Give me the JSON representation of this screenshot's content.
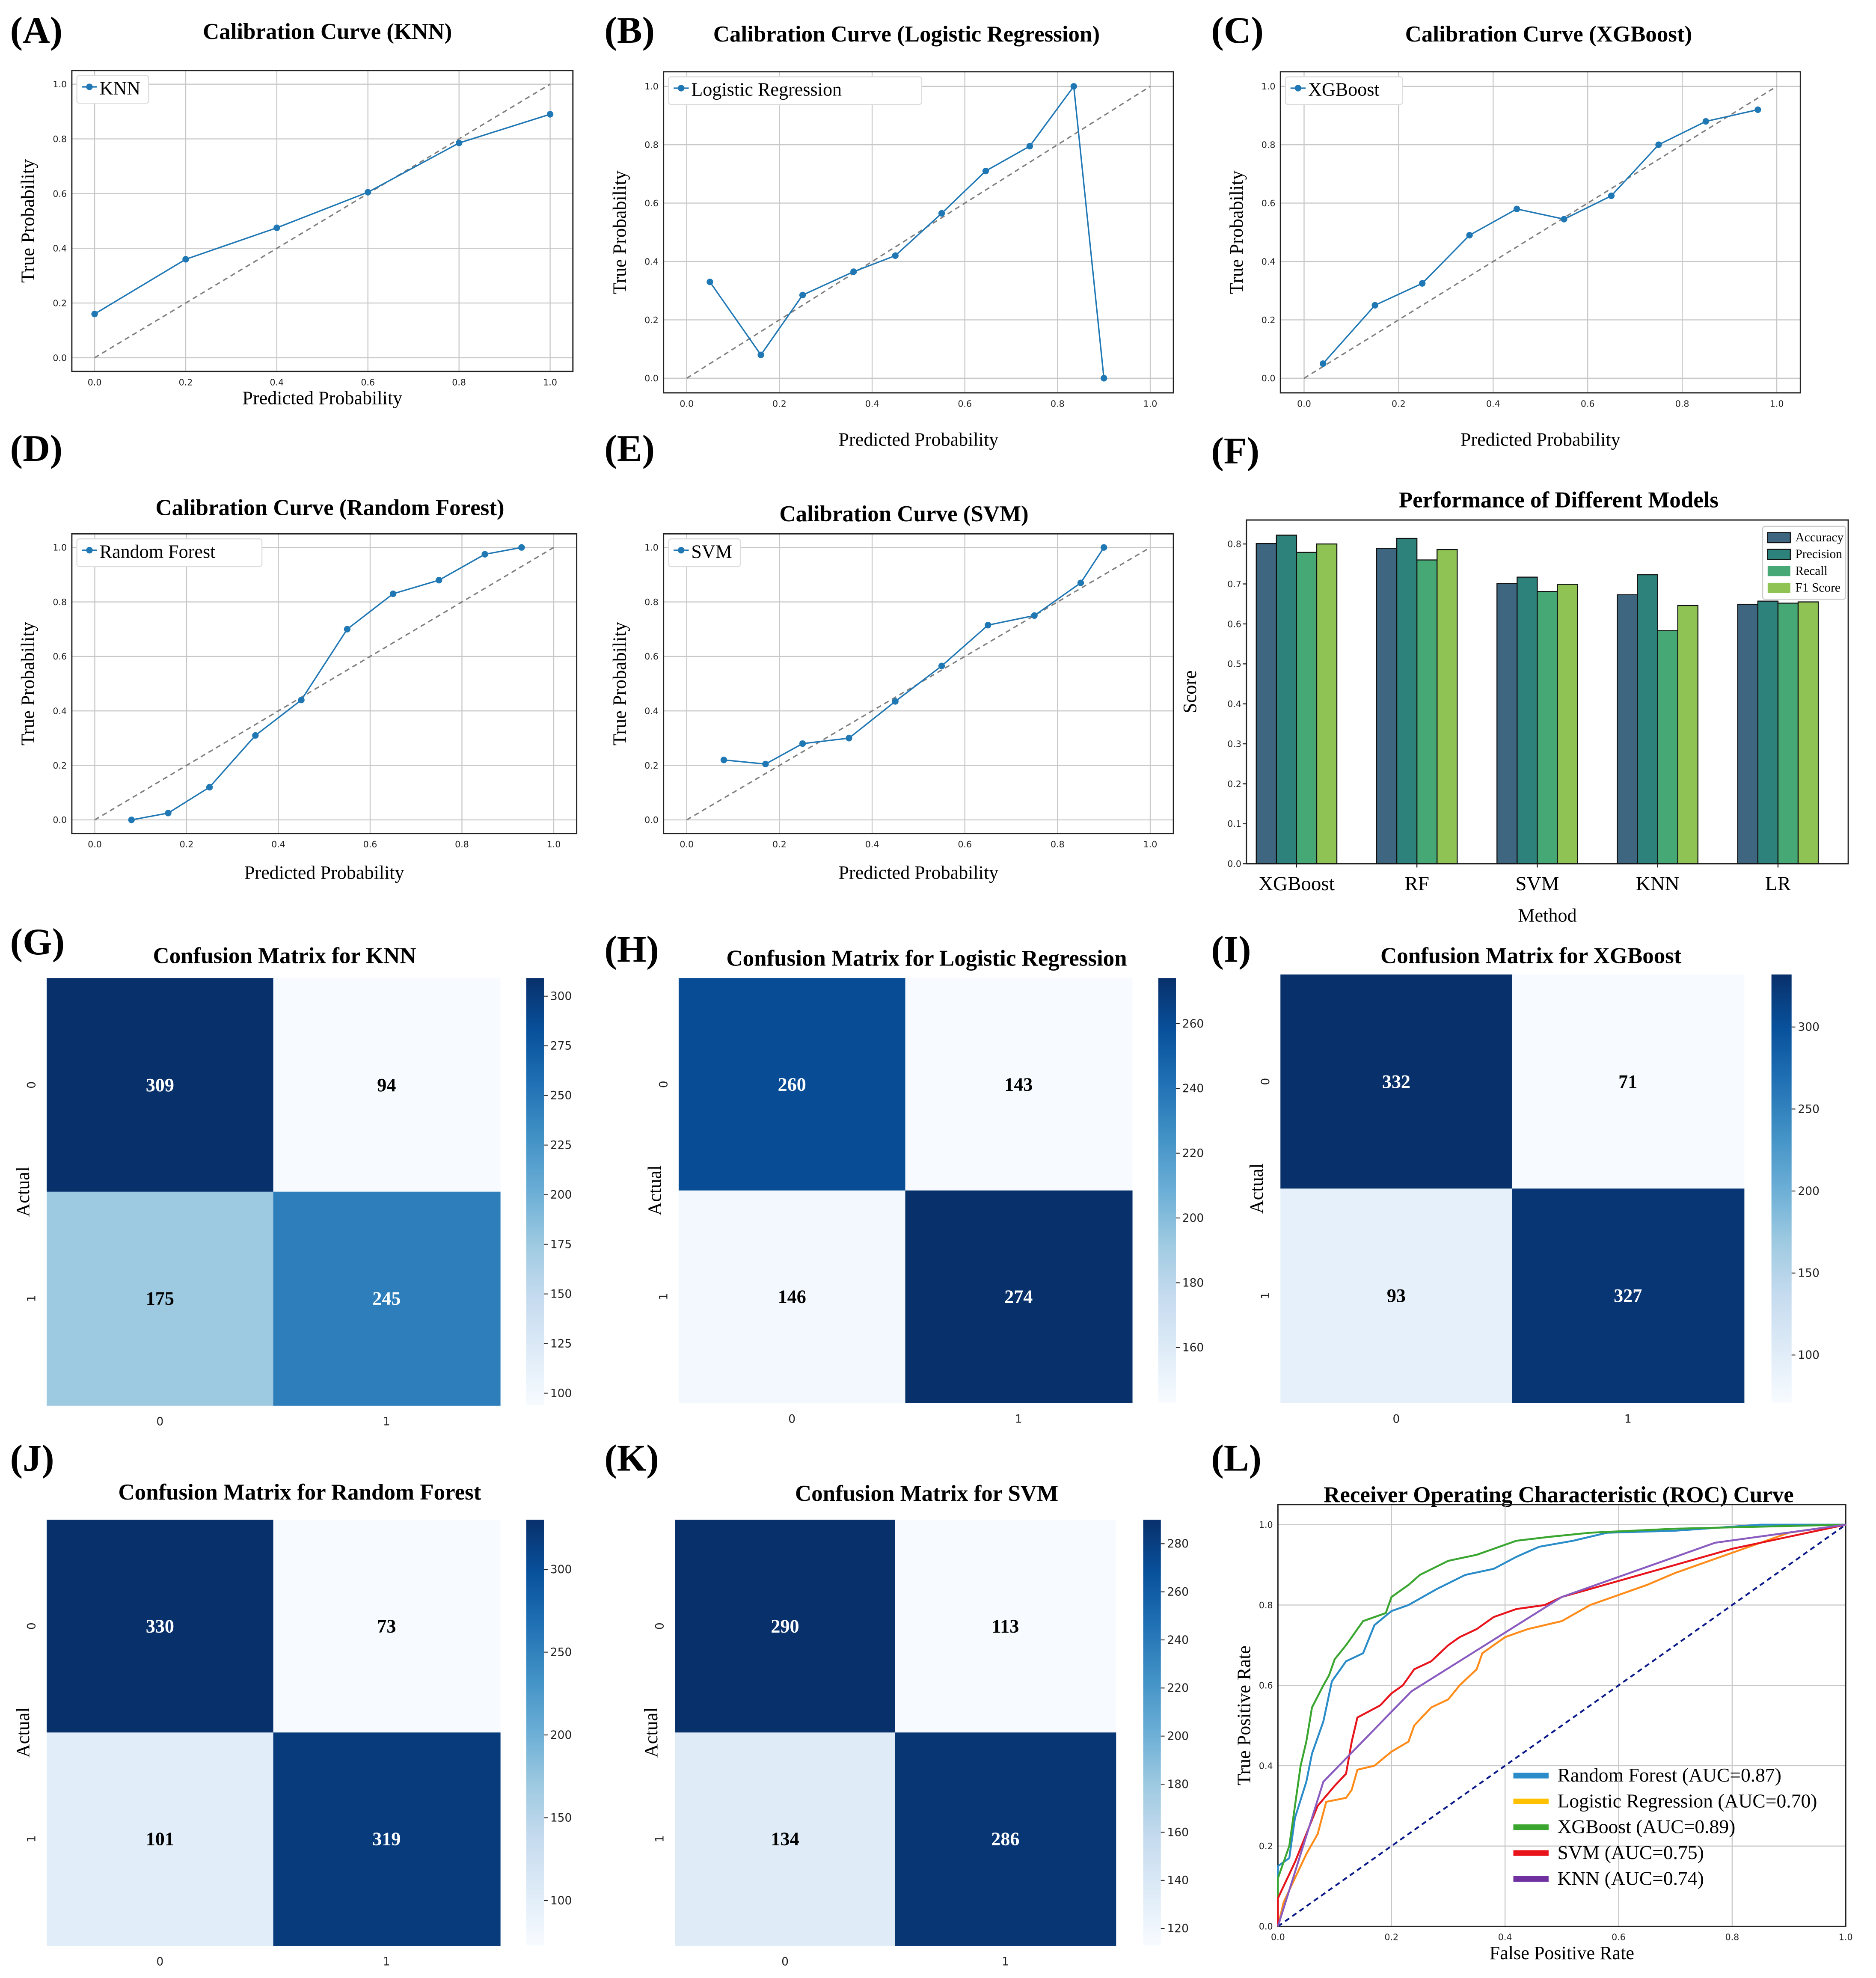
{
  "chart_data": [
    {
      "panel": "(A)",
      "type": "line",
      "title": "Calibration Curve (KNN)",
      "xlabel": "Predicted Probability",
      "ylabel": "True Probability",
      "legend": [
        "KNN"
      ],
      "legend_position": "top-left",
      "grid": true,
      "xlim": [
        -0.05,
        1.05
      ],
      "ylim": [
        -0.05,
        1.05
      ],
      "xticks": [
        0,
        0.2,
        0.4,
        0.6,
        0.8,
        1.0
      ],
      "yticks": [
        0,
        0.2,
        0.4,
        0.6,
        0.8,
        1.0
      ],
      "reference_line": "dashed diagonal",
      "color": "#1f77b4",
      "points": [
        [
          0,
          0.16
        ],
        [
          0.2,
          0.36
        ],
        [
          0.4,
          0.475
        ],
        [
          0.6,
          0.605
        ],
        [
          0.8,
          0.785
        ],
        [
          1.0,
          0.89
        ]
      ]
    },
    {
      "panel": "(B)",
      "type": "line",
      "title": "Calibration Curve (Logistic Regression)",
      "xlabel": "Predicted Probability",
      "ylabel": "True Probability",
      "legend": [
        "Logistic Regression"
      ],
      "legend_position": "top-left",
      "grid": true,
      "xlim": [
        -0.05,
        1.05
      ],
      "ylim": [
        -0.05,
        1.05
      ],
      "xticks": [
        0,
        0.2,
        0.4,
        0.6,
        0.8,
        1.0
      ],
      "yticks": [
        0,
        0.2,
        0.4,
        0.6,
        0.8,
        1.0
      ],
      "reference_line": "dashed diagonal",
      "color": "#1f77b4",
      "points": [
        [
          0.05,
          0.33
        ],
        [
          0.16,
          0.08
        ],
        [
          0.25,
          0.285
        ],
        [
          0.36,
          0.365
        ],
        [
          0.45,
          0.42
        ],
        [
          0.55,
          0.565
        ],
        [
          0.645,
          0.71
        ],
        [
          0.74,
          0.795
        ],
        [
          0.835,
          1.0
        ],
        [
          0.9,
          0.0
        ]
      ]
    },
    {
      "panel": "(C)",
      "type": "line",
      "title": "Calibration Curve (XGBoost)",
      "xlabel": "Predicted Probability",
      "ylabel": "True Probability",
      "legend": [
        "XGBoost"
      ],
      "legend_position": "top-left",
      "grid": true,
      "xlim": [
        -0.05,
        1.05
      ],
      "ylim": [
        -0.05,
        1.05
      ],
      "xticks": [
        0,
        0.2,
        0.4,
        0.6,
        0.8,
        1.0
      ],
      "yticks": [
        0,
        0.2,
        0.4,
        0.6,
        0.8,
        1.0
      ],
      "reference_line": "dashed diagonal",
      "color": "#1f77b4",
      "points": [
        [
          0.04,
          0.05
        ],
        [
          0.15,
          0.25
        ],
        [
          0.25,
          0.325
        ],
        [
          0.35,
          0.49
        ],
        [
          0.45,
          0.58
        ],
        [
          0.55,
          0.545
        ],
        [
          0.65,
          0.625
        ],
        [
          0.75,
          0.8
        ],
        [
          0.85,
          0.88
        ],
        [
          0.96,
          0.92
        ]
      ]
    },
    {
      "panel": "(D)",
      "type": "line",
      "title": "Calibration Curve (Random Forest)",
      "xlabel": "Predicted Probability",
      "ylabel": "True Probability",
      "legend": [
        "Random Forest"
      ],
      "legend_position": "top-left",
      "grid": true,
      "xlim": [
        -0.05,
        1.05
      ],
      "ylim": [
        -0.05,
        1.05
      ],
      "xticks": [
        0,
        0.2,
        0.4,
        0.6,
        0.8,
        1.0
      ],
      "yticks": [
        0,
        0.2,
        0.4,
        0.6,
        0.8,
        1.0
      ],
      "reference_line": "dashed diagonal",
      "color": "#1f77b4",
      "points": [
        [
          0.08,
          0
        ],
        [
          0.16,
          0.025
        ],
        [
          0.25,
          0.12
        ],
        [
          0.35,
          0.31
        ],
        [
          0.45,
          0.44
        ],
        [
          0.55,
          0.7
        ],
        [
          0.65,
          0.83
        ],
        [
          0.75,
          0.88
        ],
        [
          0.85,
          0.975
        ],
        [
          0.93,
          1.0
        ]
      ]
    },
    {
      "panel": "(E)",
      "type": "line",
      "title": "Calibration Curve (SVM)",
      "xlabel": "Predicted Probability",
      "ylabel": "True Probability",
      "legend": [
        "SVM"
      ],
      "legend_position": "top-left",
      "grid": true,
      "xlim": [
        -0.05,
        1.05
      ],
      "ylim": [
        -0.05,
        1.05
      ],
      "xticks": [
        0,
        0.2,
        0.4,
        0.6,
        0.8,
        1.0
      ],
      "yticks": [
        0,
        0.2,
        0.4,
        0.6,
        0.8,
        1.0
      ],
      "reference_line": "dashed diagonal",
      "color": "#1f77b4",
      "points": [
        [
          0.08,
          0.22
        ],
        [
          0.17,
          0.205
        ],
        [
          0.25,
          0.28
        ],
        [
          0.35,
          0.3
        ],
        [
          0.45,
          0.435
        ],
        [
          0.55,
          0.565
        ],
        [
          0.65,
          0.715
        ],
        [
          0.75,
          0.75
        ],
        [
          0.85,
          0.87
        ],
        [
          0.9,
          1.0
        ]
      ]
    },
    {
      "panel": "(F)",
      "type": "bar",
      "title": "Performance of Different Models",
      "xlabel": "Method",
      "ylabel": "Score",
      "ylim": [
        0,
        0.86
      ],
      "yticks": [
        0,
        0.1,
        0.2,
        0.3,
        0.4,
        0.5,
        0.6,
        0.7,
        0.8
      ],
      "legend_position": "top-right",
      "grid": false,
      "categories": [
        "XGBoost",
        "RF",
        "SVM",
        "KNN",
        "LR"
      ],
      "series": [
        {
          "name": "Accuracy",
          "color": "#3e6680",
          "values": [
            0.801,
            0.789,
            0.701,
            0.673,
            0.649
          ]
        },
        {
          "name": "Precision",
          "color": "#2d837c",
          "values": [
            0.822,
            0.814,
            0.717,
            0.723,
            0.657
          ]
        },
        {
          "name": "Recall",
          "color": "#46a875",
          "values": [
            0.779,
            0.76,
            0.681,
            0.583,
            0.652
          ]
        },
        {
          "name": "F1 Score",
          "color": "#8fc454",
          "values": [
            0.8,
            0.786,
            0.699,
            0.646,
            0.655
          ]
        }
      ]
    },
    {
      "panel": "(G)",
      "type": "heatmap",
      "title": "Confusion Matrix for KNN",
      "ylabel": "Actual",
      "xticks": [
        "0",
        "1"
      ],
      "yticks": [
        "0",
        "1"
      ],
      "colormap": "Blues",
      "values": [
        [
          309,
          94
        ],
        [
          175,
          245
        ]
      ],
      "cbar_ticks": [
        100,
        125,
        150,
        175,
        200,
        225,
        250,
        275,
        300
      ]
    },
    {
      "panel": "(H)",
      "type": "heatmap",
      "title": "Confusion Matrix for Logistic Regression",
      "ylabel": "Actual",
      "xticks": [
        "0",
        "1"
      ],
      "yticks": [
        "0",
        "1"
      ],
      "colormap": "Blues",
      "values": [
        [
          260,
          143
        ],
        [
          146,
          274
        ]
      ],
      "cbar_ticks": [
        160,
        180,
        200,
        220,
        240,
        260
      ]
    },
    {
      "panel": "(I)",
      "type": "heatmap",
      "title": "Confusion Matrix for XGBoost",
      "ylabel": "Actual",
      "xticks": [
        "0",
        "1"
      ],
      "yticks": [
        "0",
        "1"
      ],
      "colormap": "Blues",
      "values": [
        [
          332,
          71
        ],
        [
          93,
          327
        ]
      ],
      "cbar_ticks": [
        100,
        150,
        200,
        250,
        300
      ]
    },
    {
      "panel": "(J)",
      "type": "heatmap",
      "title": "Confusion Matrix for Random Forest",
      "ylabel": "Actual",
      "xticks": [
        "0",
        "1"
      ],
      "yticks": [
        "0",
        "1"
      ],
      "colormap": "Blues",
      "values": [
        [
          330,
          73
        ],
        [
          101,
          319
        ]
      ],
      "cbar_ticks": [
        100,
        150,
        200,
        250,
        300
      ]
    },
    {
      "panel": "(K)",
      "type": "heatmap",
      "title": "Confusion Matrix for SVM",
      "ylabel": "Actual",
      "xticks": [
        "0",
        "1"
      ],
      "yticks": [
        "0",
        "1"
      ],
      "colormap": "Blues",
      "values": [
        [
          290,
          113
        ],
        [
          134,
          286
        ]
      ],
      "cbar_ticks": [
        120,
        140,
        160,
        180,
        200,
        220,
        240,
        260,
        280
      ]
    },
    {
      "panel": "(L)",
      "type": "line",
      "title": "Receiver Operating Characteristic (ROC) Curve",
      "xlabel": "False Positive Rate",
      "ylabel": "True Positive Rate",
      "xlim": [
        0,
        1
      ],
      "ylim": [
        0,
        1.05
      ],
      "xticks": [
        0,
        0.2,
        0.4,
        0.6,
        0.8,
        1.0
      ],
      "yticks": [
        0,
        0.2,
        0.4,
        0.6,
        0.8,
        1.0
      ],
      "grid": true,
      "legend_position": "bottom-right",
      "reference_line": "navy dashed diagonal",
      "series": [
        {
          "name": "Random Forest (AUC=0.87)",
          "color": "#2a8cc8",
          "points": [
            [
              0,
              0
            ],
            [
              0,
              0.15
            ],
            [
              0.02,
              0.17
            ],
            [
              0.03,
              0.27
            ],
            [
              0.05,
              0.36
            ],
            [
              0.06,
              0.43
            ],
            [
              0.08,
              0.51
            ],
            [
              0.095,
              0.61
            ],
            [
              0.12,
              0.66
            ],
            [
              0.15,
              0.68
            ],
            [
              0.17,
              0.75
            ],
            [
              0.2,
              0.785
            ],
            [
              0.23,
              0.8
            ],
            [
              0.28,
              0.84
            ],
            [
              0.33,
              0.875
            ],
            [
              0.38,
              0.89
            ],
            [
              0.42,
              0.92
            ],
            [
              0.46,
              0.945
            ],
            [
              0.52,
              0.96
            ],
            [
              0.58,
              0.98
            ],
            [
              0.7,
              0.985
            ],
            [
              0.85,
              1.0
            ],
            [
              1,
              1
            ]
          ]
        },
        {
          "name": "Logistic Regression (AUC=0.70)",
          "color": "#ff8c1a",
          "legend_color": "#ffc000",
          "points": [
            [
              0,
              0
            ],
            [
              0.01,
              0.06
            ],
            [
              0.03,
              0.12
            ],
            [
              0.05,
              0.18
            ],
            [
              0.07,
              0.23
            ],
            [
              0.085,
              0.31
            ],
            [
              0.12,
              0.32
            ],
            [
              0.13,
              0.34
            ],
            [
              0.14,
              0.39
            ],
            [
              0.17,
              0.4
            ],
            [
              0.2,
              0.435
            ],
            [
              0.23,
              0.46
            ],
            [
              0.24,
              0.5
            ],
            [
              0.27,
              0.545
            ],
            [
              0.3,
              0.565
            ],
            [
              0.32,
              0.6
            ],
            [
              0.35,
              0.64
            ],
            [
              0.36,
              0.68
            ],
            [
              0.4,
              0.72
            ],
            [
              0.44,
              0.74
            ],
            [
              0.5,
              0.76
            ],
            [
              0.55,
              0.8
            ],
            [
              0.6,
              0.825
            ],
            [
              0.65,
              0.85
            ],
            [
              0.7,
              0.88
            ],
            [
              0.8,
              0.93
            ],
            [
              0.9,
              0.98
            ],
            [
              1,
              1
            ]
          ]
        },
        {
          "name": "XGBoost (AUC=0.89)",
          "color": "#3aa630",
          "points": [
            [
              0,
              0
            ],
            [
              0,
              0.12
            ],
            [
              0.02,
              0.2
            ],
            [
              0.03,
              0.3
            ],
            [
              0.04,
              0.4
            ],
            [
              0.05,
              0.46
            ],
            [
              0.06,
              0.545
            ],
            [
              0.08,
              0.6
            ],
            [
              0.09,
              0.625
            ],
            [
              0.1,
              0.665
            ],
            [
              0.12,
              0.7
            ],
            [
              0.14,
              0.74
            ],
            [
              0.15,
              0.76
            ],
            [
              0.19,
              0.78
            ],
            [
              0.2,
              0.82
            ],
            [
              0.23,
              0.85
            ],
            [
              0.25,
              0.875
            ],
            [
              0.3,
              0.91
            ],
            [
              0.35,
              0.925
            ],
            [
              0.38,
              0.94
            ],
            [
              0.42,
              0.96
            ],
            [
              0.48,
              0.97
            ],
            [
              0.55,
              0.98
            ],
            [
              0.7,
              0.99
            ],
            [
              1,
              1
            ]
          ]
        },
        {
          "name": "SVM (AUC=0.75)",
          "color": "#e8141c",
          "points": [
            [
              0,
              0
            ],
            [
              0,
              0.07
            ],
            [
              0.03,
              0.16
            ],
            [
              0.05,
              0.23
            ],
            [
              0.07,
              0.3
            ],
            [
              0.1,
              0.35
            ],
            [
              0.12,
              0.38
            ],
            [
              0.13,
              0.46
            ],
            [
              0.14,
              0.52
            ],
            [
              0.18,
              0.55
            ],
            [
              0.2,
              0.58
            ],
            [
              0.22,
              0.6
            ],
            [
              0.24,
              0.64
            ],
            [
              0.27,
              0.66
            ],
            [
              0.3,
              0.7
            ],
            [
              0.32,
              0.72
            ],
            [
              0.35,
              0.74
            ],
            [
              0.38,
              0.77
            ],
            [
              0.42,
              0.79
            ],
            [
              0.47,
              0.8
            ],
            [
              0.5,
              0.82
            ],
            [
              0.6,
              0.86
            ],
            [
              0.7,
              0.9
            ],
            [
              0.8,
              0.94
            ],
            [
              0.9,
              0.97
            ],
            [
              1,
              1
            ]
          ]
        },
        {
          "name": "KNN (AUC=0.74)",
          "color": "#8a5cc0",
          "legend_color": "#7030a0",
          "points": [
            [
              0,
              0
            ],
            [
              0.08,
              0.36
            ],
            [
              0.235,
              0.585
            ],
            [
              0.5,
              0.82
            ],
            [
              0.77,
              0.955
            ],
            [
              1,
              1
            ]
          ]
        }
      ]
    }
  ]
}
